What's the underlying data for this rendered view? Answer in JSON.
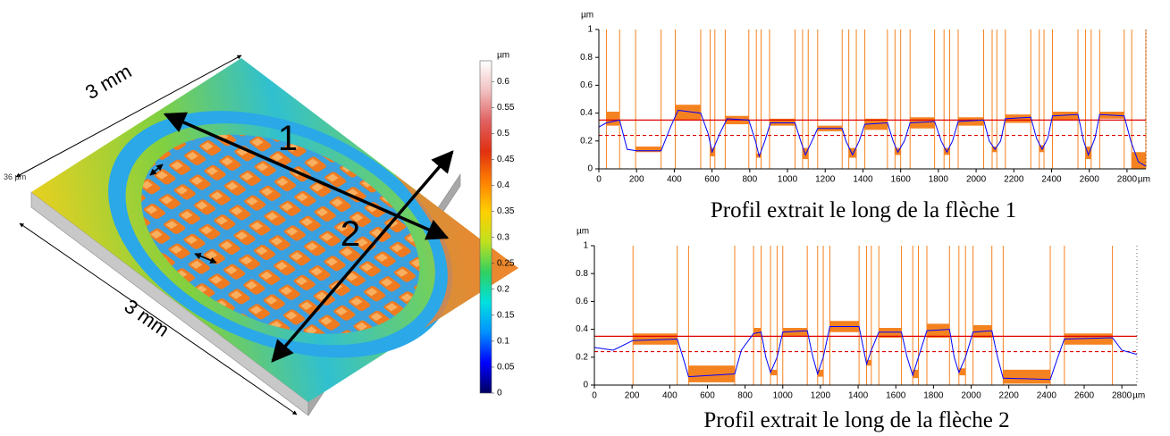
{
  "surface": {
    "width_label_top": "3 mm",
    "width_label_bottom": "3 mm",
    "arrow_1_label": "1",
    "arrow_2_label": "2",
    "height_label": "36 µm"
  },
  "colorbar": {
    "unit": "µm",
    "ylim": [
      0,
      0.64
    ],
    "yticks": [
      0,
      0.05,
      0.1,
      0.15,
      0.2,
      0.25,
      0.3,
      0.35,
      0.4,
      0.45,
      0.5,
      0.55,
      0.6
    ],
    "colors": [
      "#000060",
      "#0000ff",
      "#0090ff",
      "#00e0e0",
      "#30d060",
      "#c0e020",
      "#ffd000",
      "#ff8000",
      "#e03010",
      "#e06060",
      "#f0c0c0",
      "#ffffff"
    ]
  },
  "chart_data": [
    {
      "type": "profile",
      "caption": "Profil extrait le long de la flèche 1",
      "y_unit": "µm",
      "x_unit": "µm",
      "xlim": [
        0,
        2900
      ],
      "ylim": [
        0,
        1
      ],
      "xticks": [
        0,
        200,
        400,
        600,
        800,
        1000,
        1200,
        1400,
        1600,
        1800,
        2000,
        2200,
        2400,
        2600,
        2800
      ],
      "yticks": [
        0,
        0.2,
        0.4,
        0.6,
        0.8,
        1
      ],
      "profile_color": "#0000ff",
      "segment_color": "#f58220",
      "ref_lines": [
        {
          "value": 0.35,
          "color": "#e00000",
          "style": "solid"
        },
        {
          "value": 0.24,
          "color": "#e00000",
          "style": "dashed"
        }
      ],
      "segments": [
        {
          "x": [
            40,
            110
          ],
          "y": [
            0.31,
            0.41
          ]
        },
        {
          "x": [
            195,
            330
          ],
          "y": [
            0.12,
            0.16
          ]
        },
        {
          "x": [
            405,
            540
          ],
          "y": [
            0.35,
            0.46
          ]
        },
        {
          "x": [
            590,
            615
          ],
          "y": [
            0.09,
            0.15
          ]
        },
        {
          "x": [
            670,
            795
          ],
          "y": [
            0.32,
            0.38
          ]
        },
        {
          "x": [
            835,
            860
          ],
          "y": [
            0.08,
            0.11
          ]
        },
        {
          "x": [
            905,
            1040
          ],
          "y": [
            0.31,
            0.36
          ]
        },
        {
          "x": [
            1080,
            1110
          ],
          "y": [
            0.07,
            0.15
          ]
        },
        {
          "x": [
            1160,
            1290
          ],
          "y": [
            0.27,
            0.31
          ]
        },
        {
          "x": [
            1325,
            1365
          ],
          "y": [
            0.08,
            0.15
          ]
        },
        {
          "x": [
            1410,
            1530
          ],
          "y": [
            0.28,
            0.36
          ]
        },
        {
          "x": [
            1570,
            1600
          ],
          "y": [
            0.1,
            0.15
          ]
        },
        {
          "x": [
            1650,
            1780
          ],
          "y": [
            0.29,
            0.37
          ]
        },
        {
          "x": [
            1830,
            1860
          ],
          "y": [
            0.1,
            0.15
          ]
        },
        {
          "x": [
            1905,
            2040
          ],
          "y": [
            0.31,
            0.37
          ]
        },
        {
          "x": [
            2085,
            2110
          ],
          "y": [
            0.12,
            0.16
          ]
        },
        {
          "x": [
            2155,
            2290
          ],
          "y": [
            0.33,
            0.39
          ]
        },
        {
          "x": [
            2335,
            2360
          ],
          "y": [
            0.12,
            0.17
          ]
        },
        {
          "x": [
            2405,
            2540
          ],
          "y": [
            0.35,
            0.41
          ]
        },
        {
          "x": [
            2580,
            2610
          ],
          "y": [
            0.07,
            0.16
          ]
        },
        {
          "x": [
            2655,
            2785
          ],
          "y": [
            0.36,
            0.41
          ]
        },
        {
          "x": [
            2825,
            2900
          ],
          "y": [
            0,
            0.12
          ]
        }
      ],
      "x": [
        0,
        40,
        110,
        150,
        200,
        330,
        380,
        420,
        540,
        580,
        600,
        640,
        680,
        795,
        830,
        850,
        880,
        910,
        1040,
        1070,
        1095,
        1130,
        1160,
        1290,
        1310,
        1345,
        1380,
        1410,
        1530,
        1560,
        1585,
        1620,
        1650,
        1780,
        1815,
        1845,
        1875,
        1905,
        2040,
        2070,
        2100,
        2130,
        2155,
        2290,
        2320,
        2350,
        2380,
        2405,
        2540,
        2570,
        2595,
        2630,
        2655,
        2785,
        2820,
        2860,
        2900
      ],
      "values": [
        0.3,
        0.33,
        0.35,
        0.14,
        0.13,
        0.13,
        0.3,
        0.42,
        0.4,
        0.25,
        0.12,
        0.25,
        0.36,
        0.35,
        0.2,
        0.09,
        0.2,
        0.33,
        0.33,
        0.2,
        0.1,
        0.2,
        0.29,
        0.29,
        0.2,
        0.1,
        0.2,
        0.32,
        0.33,
        0.2,
        0.12,
        0.2,
        0.33,
        0.34,
        0.2,
        0.12,
        0.2,
        0.34,
        0.35,
        0.2,
        0.14,
        0.2,
        0.36,
        0.37,
        0.22,
        0.14,
        0.22,
        0.38,
        0.39,
        0.2,
        0.1,
        0.22,
        0.39,
        0.38,
        0.2,
        0.05,
        0.02
      ]
    },
    {
      "type": "profile",
      "caption": "Profil extrait le long de la flèche 2",
      "y_unit": "µm",
      "x_unit": "µm",
      "xlim": [
        0,
        2880
      ],
      "ylim": [
        0,
        1
      ],
      "xticks": [
        0,
        200,
        400,
        600,
        800,
        1000,
        1200,
        1400,
        1600,
        1800,
        2000,
        2200,
        2400,
        2600,
        2800
      ],
      "yticks": [
        0,
        0.2,
        0.4,
        0.6,
        0.8,
        1
      ],
      "profile_color": "#0000ff",
      "segment_color": "#f58220",
      "ref_lines": [
        {
          "value": 0.35,
          "color": "#e00000",
          "style": "solid"
        },
        {
          "value": 0.24,
          "color": "#e00000",
          "style": "dashed"
        }
      ],
      "segments": [
        {
          "x": [
            205,
            440
          ],
          "y": [
            0.29,
            0.37
          ]
        },
        {
          "x": [
            500,
            745
          ],
          "y": [
            0.02,
            0.14
          ]
        },
        {
          "x": [
            845,
            885
          ],
          "y": [
            0.35,
            0.41
          ]
        },
        {
          "x": [
            935,
            970
          ],
          "y": [
            0.07,
            0.11
          ]
        },
        {
          "x": [
            1000,
            1130
          ],
          "y": [
            0.35,
            0.41
          ]
        },
        {
          "x": [
            1185,
            1215
          ],
          "y": [
            0.06,
            0.11
          ]
        },
        {
          "x": [
            1250,
            1405
          ],
          "y": [
            0.38,
            0.46
          ]
        },
        {
          "x": [
            1445,
            1470
          ],
          "y": [
            0.14,
            0.18
          ]
        },
        {
          "x": [
            1510,
            1630
          ],
          "y": [
            0.34,
            0.41
          ]
        },
        {
          "x": [
            1690,
            1720
          ],
          "y": [
            0.05,
            0.11
          ]
        },
        {
          "x": [
            1765,
            1885
          ],
          "y": [
            0.34,
            0.44
          ]
        },
        {
          "x": [
            1935,
            1970
          ],
          "y": [
            0.07,
            0.12
          ]
        },
        {
          "x": [
            2010,
            2110
          ],
          "y": [
            0.34,
            0.43
          ]
        },
        {
          "x": [
            2170,
            2420
          ],
          "y": [
            0.01,
            0.11
          ]
        },
        {
          "x": [
            2495,
            2750
          ],
          "y": [
            0.29,
            0.37
          ]
        }
      ],
      "x": [
        0,
        100,
        205,
        440,
        470,
        500,
        745,
        780,
        845,
        885,
        910,
        935,
        970,
        1000,
        1130,
        1160,
        1185,
        1215,
        1250,
        1405,
        1430,
        1445,
        1470,
        1510,
        1630,
        1660,
        1690,
        1720,
        1765,
        1885,
        1910,
        1935,
        1970,
        2010,
        2110,
        2140,
        2170,
        2420,
        2460,
        2495,
        2750,
        2800,
        2880
      ],
      "values": [
        0.27,
        0.25,
        0.32,
        0.33,
        0.2,
        0.06,
        0.08,
        0.25,
        0.37,
        0.38,
        0.2,
        0.09,
        0.2,
        0.38,
        0.39,
        0.2,
        0.08,
        0.2,
        0.42,
        0.42,
        0.25,
        0.15,
        0.25,
        0.38,
        0.38,
        0.2,
        0.07,
        0.2,
        0.39,
        0.4,
        0.2,
        0.09,
        0.2,
        0.38,
        0.39,
        0.2,
        0.05,
        0.04,
        0.2,
        0.33,
        0.34,
        0.25,
        0.22
      ]
    }
  ]
}
